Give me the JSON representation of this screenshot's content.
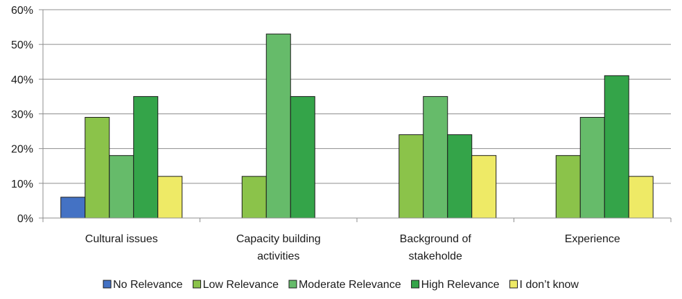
{
  "chart_data": {
    "type": "bar",
    "categories": [
      [
        "Cultural issues"
      ],
      [
        "Capacity building",
        "activities"
      ],
      [
        "Background of",
        "stakeholde"
      ],
      [
        "Experience"
      ]
    ],
    "series": [
      {
        "name": "No Relevance",
        "color": "#4472c4",
        "values": [
          6,
          0,
          0,
          0
        ]
      },
      {
        "name": "Low Relevance",
        "color": "#8bc34a",
        "values": [
          29,
          12,
          24,
          18
        ]
      },
      {
        "name": "Moderate Relevance",
        "color": "#66bb6a",
        "values": [
          18,
          53,
          35,
          29
        ]
      },
      {
        "name": "High Relevance",
        "color": "#34a449",
        "values": [
          35,
          35,
          24,
          41
        ]
      },
      {
        "name": "I don’t know",
        "color": "#eeea66",
        "values": [
          12,
          0,
          18,
          12
        ]
      }
    ],
    "ylim": [
      0,
      60
    ],
    "yticks": [
      0,
      10,
      20,
      30,
      40,
      50,
      60
    ],
    "ytick_labels": [
      "0%",
      "10%",
      "20%",
      "30%",
      "40%",
      "50%",
      "60%"
    ],
    "grid": true,
    "legend_position": "bottom"
  }
}
